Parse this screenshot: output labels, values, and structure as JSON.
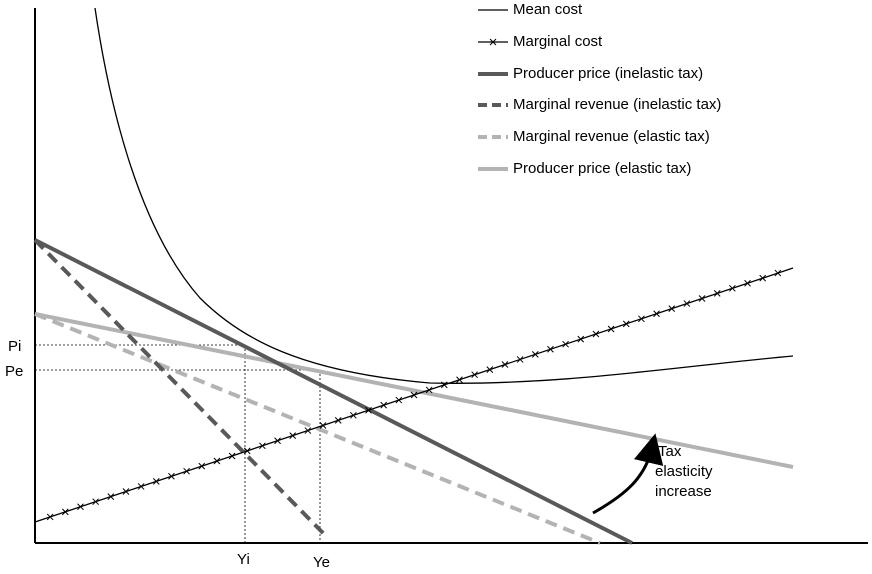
{
  "legend": {
    "items": [
      "Mean cost",
      "Marginal cost",
      "Producer price (inelastic tax)",
      "Marginal revenue (inelastic tax)",
      "Marginal revenue (elastic tax)",
      "Producer price (elastic tax)"
    ]
  },
  "axis_labels": {
    "y": [
      "Pi",
      "Pe"
    ],
    "x": [
      "Yi",
      "Ye"
    ]
  },
  "annotation": {
    "lines": [
      "Tax",
      "elasticity",
      "increase"
    ]
  }
}
